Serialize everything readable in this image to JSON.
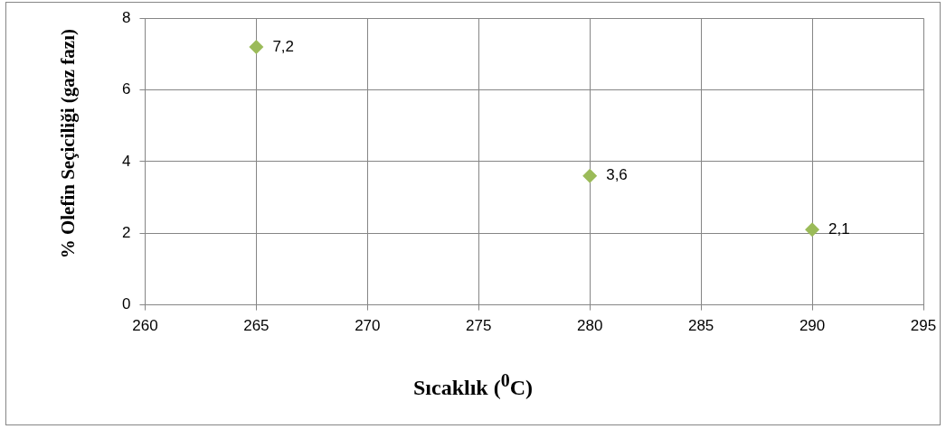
{
  "chart_data": {
    "type": "scatter",
    "xlabel": "Sıcaklık ($^{0}$C)",
    "ylabel": "% Olefin Seçiciliği (gaz fazı)",
    "x": [
      265,
      280,
      290
    ],
    "series": [
      {
        "color": "#9bbb59",
        "values": [
          7.2,
          3.6,
          2.1
        ],
        "value_labels": [
          "7,2",
          "3,6",
          "2,1"
        ]
      }
    ],
    "xlim": [
      260,
      295
    ],
    "xticks": [
      260,
      265,
      270,
      275,
      280,
      285,
      290,
      295
    ],
    "ylim": [
      0,
      8
    ],
    "yticks": [
      0,
      2,
      4,
      6,
      8
    ],
    "grid": true,
    "legend": false,
    "marker": "diamond"
  }
}
